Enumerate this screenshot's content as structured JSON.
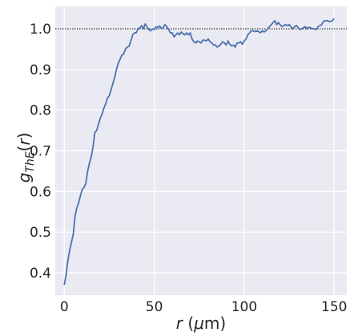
{
  "chart_data": {
    "type": "line",
    "title": "",
    "xlabel": {
      "var": "r",
      "rest": " (",
      "unit_italic": "μ",
      "unit_rest": "m)"
    },
    "ylabel": {
      "var": "g",
      "sub": "ThE",
      "open": "(",
      "arg": "r",
      "close": ")"
    },
    "xlim": [
      -5,
      157
    ],
    "ylim": [
      0.345,
      1.055
    ],
    "xticks": [
      0,
      50,
      100,
      150
    ],
    "xtick_labels": [
      "0",
      "50",
      "100",
      "150"
    ],
    "yticks": [
      0.4,
      0.5,
      0.6,
      0.7,
      0.8,
      0.9,
      1.0
    ],
    "ytick_labels": [
      "0.4",
      "0.5",
      "0.6",
      "0.7",
      "0.8",
      "0.9",
      "1.0"
    ],
    "grid": true,
    "reference_line": {
      "y": 1.0,
      "style": "dotted",
      "color": "#000000"
    },
    "style": {
      "background": "#eaeaf2",
      "grid_color": "#ffffff",
      "line_color": "#4c72b0"
    },
    "series": [
      {
        "x": [
          0,
          1,
          2,
          3,
          4,
          5,
          6,
          7,
          8,
          9,
          10,
          11,
          12,
          13,
          14,
          15,
          16,
          17,
          18,
          19,
          20,
          21,
          22,
          23,
          24,
          25,
          26,
          27,
          28,
          29,
          30,
          31,
          32,
          33,
          34,
          35,
          36,
          37,
          38,
          39,
          40,
          41,
          42,
          43,
          44,
          45,
          46,
          47,
          48,
          49,
          50,
          51,
          52,
          53,
          54,
          55,
          56,
          57,
          58,
          59,
          60,
          61,
          62,
          63,
          64,
          65,
          66,
          67,
          68,
          69,
          70,
          71,
          72,
          73,
          74,
          75,
          76,
          77,
          78,
          79,
          80,
          81,
          82,
          83,
          84,
          85,
          86,
          87,
          88,
          89,
          90,
          91,
          92,
          93,
          94,
          95,
          96,
          97,
          98,
          99,
          100,
          101,
          102,
          103,
          104,
          105,
          106,
          107,
          108,
          109,
          110,
          111,
          112,
          113,
          114,
          115,
          116,
          117,
          118,
          119,
          120,
          121,
          122,
          123,
          124,
          125,
          126,
          127,
          128,
          129,
          130,
          131,
          132,
          133,
          134,
          135,
          136,
          137,
          138,
          139,
          140,
          141,
          142,
          143,
          144,
          145,
          146,
          147,
          148,
          149,
          150
        ],
        "y": [
          0.37,
          0.395,
          0.43,
          0.455,
          0.475,
          0.495,
          0.54,
          0.56,
          0.572,
          0.59,
          0.605,
          0.61,
          0.62,
          0.65,
          0.67,
          0.685,
          0.71,
          0.745,
          0.75,
          0.765,
          0.78,
          0.79,
          0.805,
          0.815,
          0.83,
          0.835,
          0.85,
          0.865,
          0.88,
          0.9,
          0.915,
          0.925,
          0.935,
          0.938,
          0.95,
          0.955,
          0.957,
          0.97,
          0.985,
          0.99,
          0.99,
          1.0,
          1.002,
          1.008,
          1.0,
          1.012,
          1.005,
          0.998,
          0.995,
          1.0,
          0.998,
          1.005,
          1.003,
          1.007,
          1.0,
          1.004,
          1.01,
          1.005,
          0.998,
          0.99,
          0.99,
          0.98,
          0.985,
          0.99,
          0.985,
          0.992,
          0.988,
          0.985,
          0.99,
          0.985,
          0.99,
          0.975,
          0.968,
          0.965,
          0.97,
          0.968,
          0.965,
          0.972,
          0.972,
          0.97,
          0.975,
          0.968,
          0.965,
          0.96,
          0.96,
          0.955,
          0.958,
          0.962,
          0.968,
          0.965,
          0.96,
          0.97,
          0.962,
          0.958,
          0.96,
          0.955,
          0.965,
          0.965,
          0.968,
          0.962,
          0.97,
          0.975,
          0.985,
          0.99,
          0.995,
          0.995,
          0.993,
          0.995,
          0.993,
          0.99,
          0.995,
          0.992,
          0.995,
          1.0,
          1.005,
          1.01,
          1.015,
          1.02,
          1.01,
          1.015,
          1.01,
          1.005,
          1.008,
          1.01,
          1.008,
          1.01,
          1.005,
          1.0,
          1.005,
          1.008,
          1.003,
          0.998,
          1.0,
          1.003,
          1.005,
          1.0,
          1.004,
          1.002,
          1.0,
          1.0,
          0.998,
          1.005,
          1.008,
          1.01,
          1.018,
          1.02,
          1.02,
          1.018,
          1.018,
          1.02,
          1.025
        ]
      }
    ]
  }
}
